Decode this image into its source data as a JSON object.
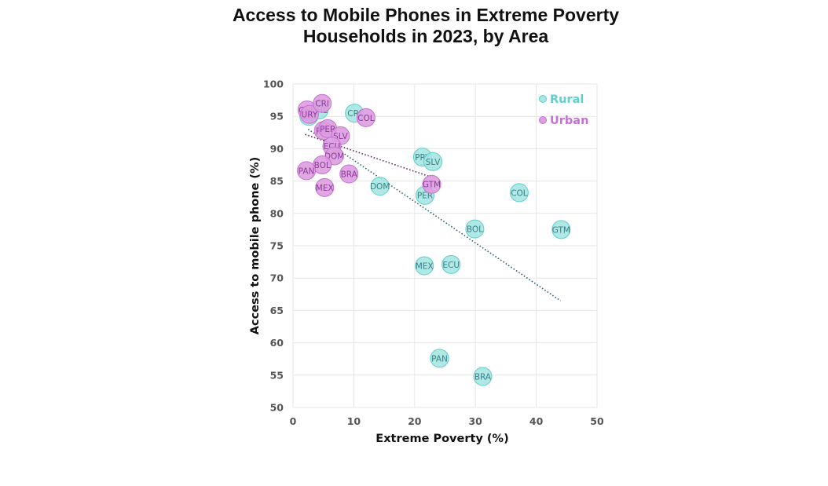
{
  "chart_data": {
    "type": "scatter",
    "title_line1": "Access to Mobile Phones in Extreme Poverty",
    "title_line2": "Households in 2023, by Area",
    "xlabel": "Extreme Poverty (%)",
    "ylabel": "Access to mobile phone (%)",
    "xlim": [
      0,
      50
    ],
    "ylim": [
      50,
      100
    ],
    "x_ticks": [
      0,
      10,
      20,
      30,
      40,
      50
    ],
    "y_ticks": [
      50,
      55,
      60,
      65,
      70,
      75,
      80,
      85,
      90,
      95,
      100
    ],
    "grid": true,
    "legend_position": "top-right",
    "series": [
      {
        "name": "Rural",
        "color": "#5ecfcf",
        "fill": "#a6e6e2",
        "trend_color": "#1f5f6f",
        "trendline": [
          [
            2.5,
            93.0
          ],
          [
            44.0,
            66.5
          ]
        ],
        "points": [
          {
            "label": "CHL",
            "x": 4.3,
            "y": 96.0
          },
          {
            "label": "URY",
            "x": 2.6,
            "y": 95.0
          },
          {
            "label": "CRI",
            "x": 10.1,
            "y": 95.5
          },
          {
            "label": "PRY",
            "x": 21.3,
            "y": 88.7
          },
          {
            "label": "SLV",
            "x": 23.0,
            "y": 88.0
          },
          {
            "label": "DOM",
            "x": 14.3,
            "y": 84.2
          },
          {
            "label": "PER",
            "x": 21.7,
            "y": 82.8
          },
          {
            "label": "COL",
            "x": 37.2,
            "y": 83.2
          },
          {
            "label": "BOL",
            "x": 29.9,
            "y": 77.6
          },
          {
            "label": "GTM",
            "x": 44.1,
            "y": 77.5
          },
          {
            "label": "MEX",
            "x": 21.6,
            "y": 71.9
          },
          {
            "label": "ECU",
            "x": 26.0,
            "y": 72.1
          },
          {
            "label": "PAN",
            "x": 24.1,
            "y": 57.6
          },
          {
            "label": "BRA",
            "x": 31.2,
            "y": 54.8
          }
        ]
      },
      {
        "name": "Urban",
        "color": "#c471d4",
        "fill": "#dd9ddf",
        "trend_color": "#5a1f4f",
        "trendline": [
          [
            2.0,
            92.2
          ],
          [
            22.8,
            85.6
          ]
        ],
        "points": [
          {
            "label": "CHL",
            "x": 2.3,
            "y": 96.0
          },
          {
            "label": "URY",
            "x": 2.7,
            "y": 95.3
          },
          {
            "label": "CRI",
            "x": 4.8,
            "y": 97.0
          },
          {
            "label": "COL",
            "x": 12.0,
            "y": 94.8
          },
          {
            "label": "PRY",
            "x": 5.0,
            "y": 92.8
          },
          {
            "label": "PER",
            "x": 5.7,
            "y": 93.1
          },
          {
            "label": "SLV",
            "x": 7.8,
            "y": 92.0
          },
          {
            "label": "ECU",
            "x": 6.4,
            "y": 90.4
          },
          {
            "label": "DOM",
            "x": 6.8,
            "y": 88.9
          },
          {
            "label": "BOL",
            "x": 4.8,
            "y": 87.5
          },
          {
            "label": "PAN",
            "x": 2.2,
            "y": 86.6
          },
          {
            "label": "BRA",
            "x": 9.2,
            "y": 86.1
          },
          {
            "label": "MEX",
            "x": 5.2,
            "y": 84.0
          },
          {
            "label": "GTM",
            "x": 22.8,
            "y": 84.5
          }
        ]
      }
    ]
  }
}
